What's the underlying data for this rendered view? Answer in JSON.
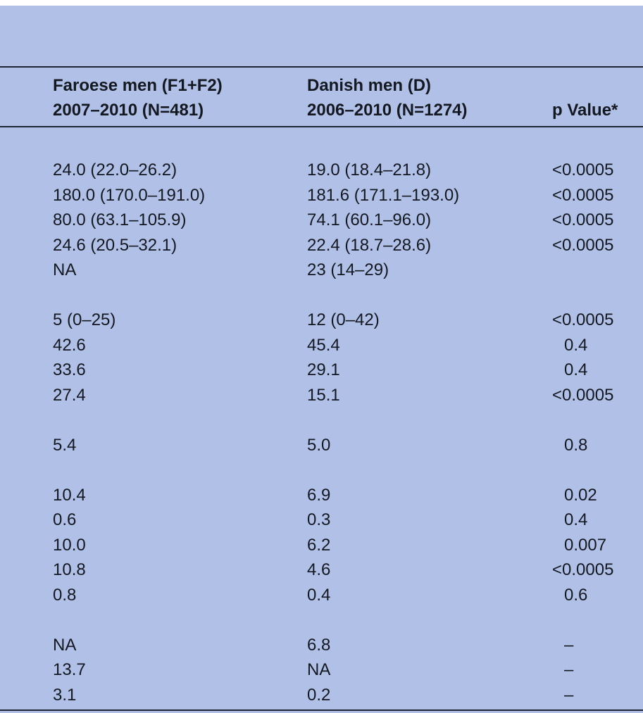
{
  "table": {
    "header": [
      [
        "Faroese men (F1+F2)",
        "2007–2010 (N=481)"
      ],
      [
        "Danish men (D)",
        "2006–2010 (N=1274)"
      ],
      [
        "p Value*"
      ]
    ],
    "groups": [
      [
        [
          "24.0 (22.0–26.2)",
          "19.0 (18.4–21.8)",
          "<0.0005"
        ],
        [
          "180.0 (170.0–191.0)",
          "181.6 (171.1–193.0)",
          "<0.0005"
        ],
        [
          "80.0 (63.1–105.9)",
          "74.1 (60.1–96.0)",
          "<0.0005"
        ],
        [
          "24.6 (20.5–32.1)",
          "22.4 (18.7–28.6)",
          "<0.0005"
        ],
        [
          "NA",
          "23 (14–29)"
        ]
      ],
      [
        [
          "5 (0–25)",
          "12 (0–42)",
          "<0.0005"
        ],
        [
          "42.6",
          "45.4",
          "0.4"
        ],
        [
          "33.6",
          "29.1",
          "0.4"
        ],
        [
          "27.4",
          "15.1",
          "<0.0005"
        ]
      ],
      [
        [
          "5.4",
          "5.0",
          "0.8"
        ]
      ],
      [
        [
          "10.4",
          "6.9",
          "0.02"
        ],
        [
          "0.6",
          "0.3",
          "0.4"
        ],
        [
          "10.0",
          "6.2",
          "0.007"
        ],
        [
          "10.8",
          "4.6",
          "<0.0005"
        ],
        [
          "0.8",
          "0.4",
          "0.6"
        ]
      ],
      [
        [
          "NA",
          "6.8",
          "–"
        ],
        [
          "13.7",
          "NA",
          "–"
        ],
        [
          "3.1",
          "0.2",
          "–"
        ]
      ]
    ]
  }
}
